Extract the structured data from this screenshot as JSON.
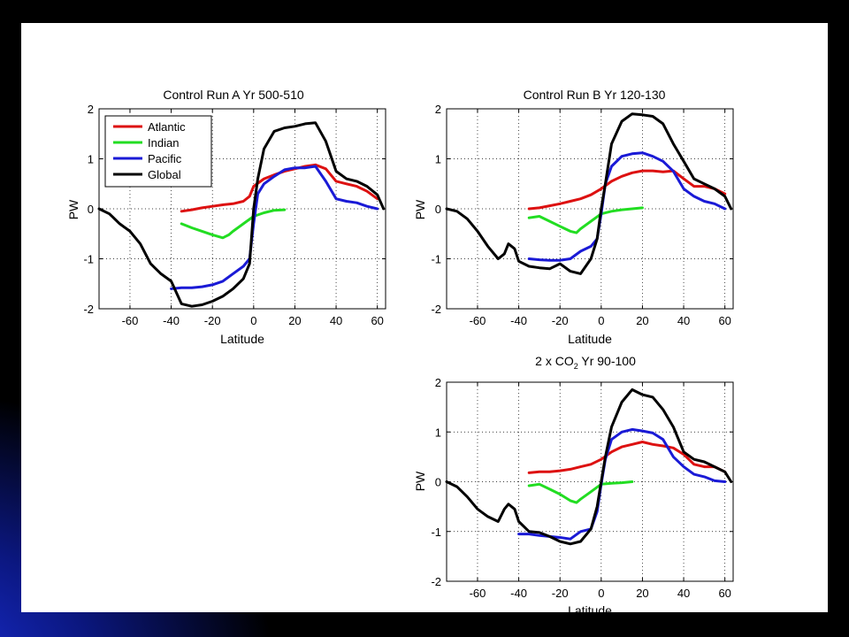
{
  "colors": {
    "Atlantic": "#dd1111",
    "Indian": "#22dd22",
    "Pacific": "#1a1ad6",
    "Global": "#000000"
  },
  "chart_data": [
    {
      "type": "line",
      "title": "Control Run A Yr 500-510",
      "xlabel": "Latitude",
      "ylabel": "PW",
      "xlim": [
        -75,
        64
      ],
      "ylim": [
        -2,
        2
      ],
      "xticks": [
        -60,
        -40,
        -20,
        0,
        20,
        40,
        60
      ],
      "xtick_labels": [
        "-60",
        "-40",
        "-20",
        "0",
        "20",
        "40",
        "60"
      ],
      "yticks": [
        -2,
        -1,
        0,
        1,
        2
      ],
      "ytick_labels": [
        "-2",
        "-1",
        "0",
        "1",
        "2"
      ],
      "grid": true,
      "legend": {
        "position": "top-left",
        "entries": [
          "Atlantic",
          "Indian",
          "Pacific",
          "Global"
        ]
      },
      "series": [
        {
          "name": "Atlantic",
          "x": [
            -35,
            -30,
            -25,
            -20,
            -15,
            -10,
            -5,
            -2,
            0,
            5,
            10,
            15,
            20,
            25,
            30,
            35,
            40,
            45,
            50,
            55,
            60
          ],
          "y": [
            -0.05,
            -0.02,
            0.02,
            0.05,
            0.08,
            0.1,
            0.15,
            0.25,
            0.45,
            0.6,
            0.68,
            0.75,
            0.8,
            0.85,
            0.88,
            0.8,
            0.55,
            0.5,
            0.45,
            0.35,
            0.2
          ]
        },
        {
          "name": "Indian",
          "x": [
            -35,
            -30,
            -25,
            -20,
            -15,
            -12,
            -10,
            -5,
            0,
            5,
            10,
            15
          ],
          "y": [
            -0.3,
            -0.38,
            -0.45,
            -0.52,
            -0.58,
            -0.52,
            -0.45,
            -0.3,
            -0.15,
            -0.08,
            -0.03,
            -0.02
          ]
        },
        {
          "name": "Pacific",
          "x": [
            -40,
            -35,
            -30,
            -25,
            -20,
            -15,
            -10,
            -5,
            -2,
            0,
            2,
            5,
            10,
            15,
            20,
            25,
            30,
            35,
            40,
            45,
            50,
            55,
            60
          ],
          "y": [
            -1.6,
            -1.58,
            -1.58,
            -1.56,
            -1.52,
            -1.45,
            -1.3,
            -1.15,
            -1.0,
            -0.3,
            0.3,
            0.5,
            0.65,
            0.78,
            0.82,
            0.82,
            0.85,
            0.55,
            0.2,
            0.15,
            0.12,
            0.05,
            0.0
          ]
        },
        {
          "name": "Global",
          "x": [
            -75,
            -70,
            -65,
            -60,
            -55,
            -50,
            -45,
            -40,
            -35,
            -30,
            -25,
            -20,
            -15,
            -10,
            -5,
            -2,
            0,
            2,
            5,
            10,
            15,
            20,
            25,
            30,
            35,
            40,
            45,
            50,
            55,
            60,
            63
          ],
          "y": [
            0.0,
            -0.1,
            -0.3,
            -0.45,
            -0.7,
            -1.1,
            -1.3,
            -1.45,
            -1.9,
            -1.95,
            -1.92,
            -1.85,
            -1.75,
            -1.6,
            -1.4,
            -1.1,
            0.0,
            0.6,
            1.2,
            1.55,
            1.62,
            1.65,
            1.7,
            1.72,
            1.35,
            0.75,
            0.6,
            0.55,
            0.45,
            0.28,
            0.0
          ]
        }
      ]
    },
    {
      "type": "line",
      "title": "Control Run B Yr 120-130",
      "xlabel": "Latitude",
      "ylabel": "PW",
      "xlim": [
        -75,
        64
      ],
      "ylim": [
        -2,
        2
      ],
      "xticks": [
        -60,
        -40,
        -20,
        0,
        20,
        40,
        60
      ],
      "xtick_labels": [
        "-60",
        "-40",
        "-20",
        "0",
        "20",
        "40",
        "60"
      ],
      "yticks": [
        -2,
        -1,
        0,
        1,
        2
      ],
      "ytick_labels": [
        "-2",
        "-1",
        "0",
        "1",
        "2"
      ],
      "grid": true,
      "series": [
        {
          "name": "Atlantic",
          "x": [
            -35,
            -30,
            -25,
            -20,
            -15,
            -10,
            -5,
            0,
            5,
            10,
            15,
            20,
            25,
            30,
            35,
            40,
            45,
            50,
            55,
            60
          ],
          "y": [
            0.0,
            0.02,
            0.06,
            0.1,
            0.15,
            0.2,
            0.28,
            0.4,
            0.55,
            0.65,
            0.72,
            0.76,
            0.76,
            0.74,
            0.76,
            0.6,
            0.45,
            0.45,
            0.4,
            0.3
          ]
        },
        {
          "name": "Indian",
          "x": [
            -35,
            -30,
            -25,
            -20,
            -15,
            -12,
            -10,
            -5,
            0,
            5,
            10,
            15,
            20
          ],
          "y": [
            -0.18,
            -0.15,
            -0.25,
            -0.35,
            -0.45,
            -0.48,
            -0.4,
            -0.25,
            -0.1,
            -0.05,
            -0.02,
            0.0,
            0.02
          ]
        },
        {
          "name": "Pacific",
          "x": [
            -35,
            -30,
            -25,
            -20,
            -15,
            -10,
            -5,
            -2,
            0,
            2,
            5,
            10,
            15,
            20,
            25,
            30,
            35,
            40,
            45,
            50,
            55,
            60
          ],
          "y": [
            -1.0,
            -1.02,
            -1.03,
            -1.03,
            -1.0,
            -0.85,
            -0.75,
            -0.6,
            -0.1,
            0.5,
            0.85,
            1.05,
            1.1,
            1.12,
            1.05,
            0.95,
            0.75,
            0.4,
            0.25,
            0.15,
            0.1,
            0.0
          ]
        },
        {
          "name": "Global",
          "x": [
            -75,
            -70,
            -65,
            -60,
            -55,
            -50,
            -47,
            -45,
            -42,
            -40,
            -35,
            -30,
            -25,
            -20,
            -15,
            -10,
            -5,
            -2,
            0,
            2,
            5,
            10,
            15,
            20,
            25,
            30,
            35,
            40,
            45,
            50,
            55,
            60,
            63
          ],
          "y": [
            0.0,
            -0.05,
            -0.2,
            -0.45,
            -0.75,
            -1.0,
            -0.9,
            -0.7,
            -0.8,
            -1.05,
            -1.15,
            -1.18,
            -1.2,
            -1.1,
            -1.25,
            -1.3,
            -1.0,
            -0.6,
            0.0,
            0.5,
            1.3,
            1.75,
            1.9,
            1.88,
            1.85,
            1.7,
            1.3,
            0.95,
            0.6,
            0.5,
            0.4,
            0.25,
            0.0
          ]
        }
      ]
    },
    {
      "type": "line",
      "title": "2 x CO2 Yr 90-100",
      "title_main": "2 x CO",
      "title_sub": "2",
      "title_tail": " Yr 90-100",
      "xlabel": "Latitude",
      "ylabel": "PW",
      "xlim": [
        -75,
        64
      ],
      "ylim": [
        -2,
        2
      ],
      "xticks": [
        -60,
        -40,
        -20,
        0,
        20,
        40,
        60
      ],
      "xtick_labels": [
        "-60",
        "-40",
        "-20",
        "0",
        "20",
        "40",
        "60"
      ],
      "yticks": [
        -2,
        -1,
        0,
        1,
        2
      ],
      "ytick_labels": [
        "-2",
        "-1",
        "0",
        "1",
        "2"
      ],
      "grid": true,
      "series": [
        {
          "name": "Atlantic",
          "x": [
            -35,
            -30,
            -25,
            -20,
            -15,
            -10,
            -5,
            0,
            5,
            10,
            15,
            20,
            25,
            30,
            35,
            40,
            45,
            50,
            55,
            60
          ],
          "y": [
            0.18,
            0.2,
            0.2,
            0.22,
            0.25,
            0.3,
            0.35,
            0.45,
            0.6,
            0.7,
            0.75,
            0.8,
            0.75,
            0.72,
            0.68,
            0.55,
            0.35,
            0.3,
            0.3,
            0.2
          ]
        },
        {
          "name": "Indian",
          "x": [
            -35,
            -30,
            -25,
            -20,
            -15,
            -12,
            -10,
            -5,
            0,
            5,
            10,
            15
          ],
          "y": [
            -0.08,
            -0.05,
            -0.15,
            -0.25,
            -0.38,
            -0.42,
            -0.35,
            -0.2,
            -0.05,
            -0.03,
            -0.02,
            0.0
          ]
        },
        {
          "name": "Pacific",
          "x": [
            -40,
            -35,
            -30,
            -25,
            -20,
            -15,
            -10,
            -5,
            -2,
            0,
            2,
            5,
            10,
            15,
            20,
            25,
            30,
            35,
            40,
            45,
            50,
            55,
            60
          ],
          "y": [
            -1.05,
            -1.05,
            -1.08,
            -1.1,
            -1.12,
            -1.15,
            -1.0,
            -0.95,
            -0.6,
            -0.05,
            0.45,
            0.85,
            1.0,
            1.05,
            1.02,
            0.98,
            0.85,
            0.5,
            0.3,
            0.15,
            0.1,
            0.02,
            0.0
          ]
        },
        {
          "name": "Global",
          "x": [
            -75,
            -70,
            -65,
            -60,
            -55,
            -50,
            -47,
            -45,
            -42,
            -40,
            -35,
            -30,
            -25,
            -20,
            -15,
            -10,
            -5,
            -2,
            0,
            2,
            5,
            10,
            15,
            20,
            25,
            30,
            35,
            40,
            45,
            50,
            55,
            60,
            63
          ],
          "y": [
            0.0,
            -0.1,
            -0.3,
            -0.55,
            -0.7,
            -0.8,
            -0.55,
            -0.45,
            -0.55,
            -0.8,
            -1.0,
            -1.02,
            -1.1,
            -1.2,
            -1.25,
            -1.2,
            -0.95,
            -0.5,
            0.0,
            0.5,
            1.1,
            1.6,
            1.85,
            1.75,
            1.7,
            1.45,
            1.1,
            0.6,
            0.45,
            0.4,
            0.3,
            0.2,
            0.0
          ]
        }
      ]
    }
  ]
}
